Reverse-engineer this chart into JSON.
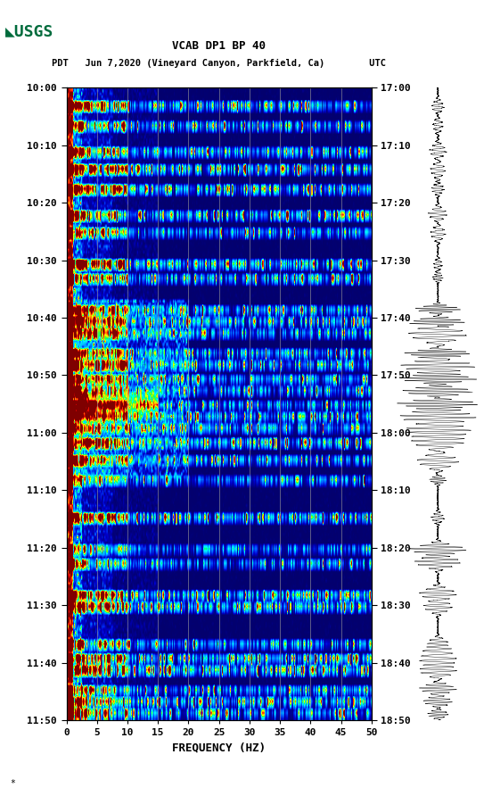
{
  "title_line1": "VCAB DP1 BP 40",
  "title_line2": "PDT   Jun 7,2020 (Vineyard Canyon, Parkfield, Ca)        UTC",
  "xlabel": "FREQUENCY (HZ)",
  "freq_min": 0,
  "freq_max": 50,
  "left_yticks_labels": [
    "10:00",
    "10:10",
    "10:20",
    "10:30",
    "10:40",
    "10:50",
    "11:00",
    "11:10",
    "11:20",
    "11:30",
    "11:40",
    "11:50"
  ],
  "right_yticks_labels": [
    "17:00",
    "17:10",
    "17:20",
    "17:30",
    "17:40",
    "17:50",
    "18:00",
    "18:10",
    "18:20",
    "18:30",
    "18:40",
    "18:50"
  ],
  "xticks": [
    0,
    5,
    10,
    15,
    20,
    25,
    30,
    35,
    40,
    45,
    50
  ],
  "bg_color": "#ffffff",
  "usgs_green": "#006b3c",
  "fig_width": 5.52,
  "fig_height": 8.92,
  "random_seed": 42
}
